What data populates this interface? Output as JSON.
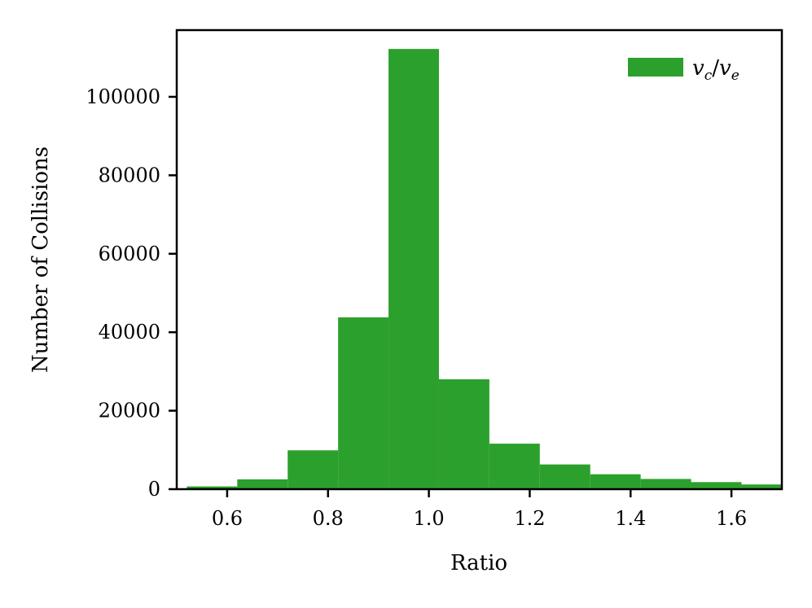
{
  "chart_data": {
    "type": "bar",
    "bins": [
      {
        "x0": 0.52,
        "x1": 0.62,
        "value": 700
      },
      {
        "x0": 0.62,
        "x1": 0.72,
        "value": 2500
      },
      {
        "x0": 0.72,
        "x1": 0.82,
        "value": 9900
      },
      {
        "x0": 0.82,
        "x1": 0.92,
        "value": 43800
      },
      {
        "x0": 0.92,
        "x1": 1.02,
        "value": 112200
      },
      {
        "x0": 1.02,
        "x1": 1.12,
        "value": 28000
      },
      {
        "x0": 1.12,
        "x1": 1.22,
        "value": 11600
      },
      {
        "x0": 1.22,
        "x1": 1.32,
        "value": 6300
      },
      {
        "x0": 1.32,
        "x1": 1.42,
        "value": 3800
      },
      {
        "x0": 1.42,
        "x1": 1.52,
        "value": 2600
      },
      {
        "x0": 1.52,
        "x1": 1.62,
        "value": 1800
      },
      {
        "x0": 1.62,
        "x1": 1.72,
        "value": 1200
      }
    ],
    "xlim": [
      0.5,
      1.7
    ],
    "ylim": [
      0,
      117000
    ],
    "xticks": [
      0.6,
      0.8,
      1.0,
      1.2,
      1.4,
      1.6
    ],
    "xtick_labels": [
      "0.6",
      "0.8",
      "1.0",
      "1.2",
      "1.4",
      "1.6"
    ],
    "yticks": [
      0,
      20000,
      40000,
      60000,
      80000,
      100000
    ],
    "ytick_labels": [
      "0",
      "20000",
      "40000",
      "60000",
      "80000",
      "100000"
    ],
    "xlabel": "Ratio",
    "ylabel": "Number of Collisions",
    "series": [
      {
        "name": "v_c/v_e",
        "color": "#2ca02c"
      }
    ],
    "legend": {
      "placement": "top-right",
      "label_main_1": "v",
      "label_sub_1": "c",
      "label_slash": "/",
      "label_main_2": "v",
      "label_sub_2": "e"
    },
    "grid": false
  }
}
